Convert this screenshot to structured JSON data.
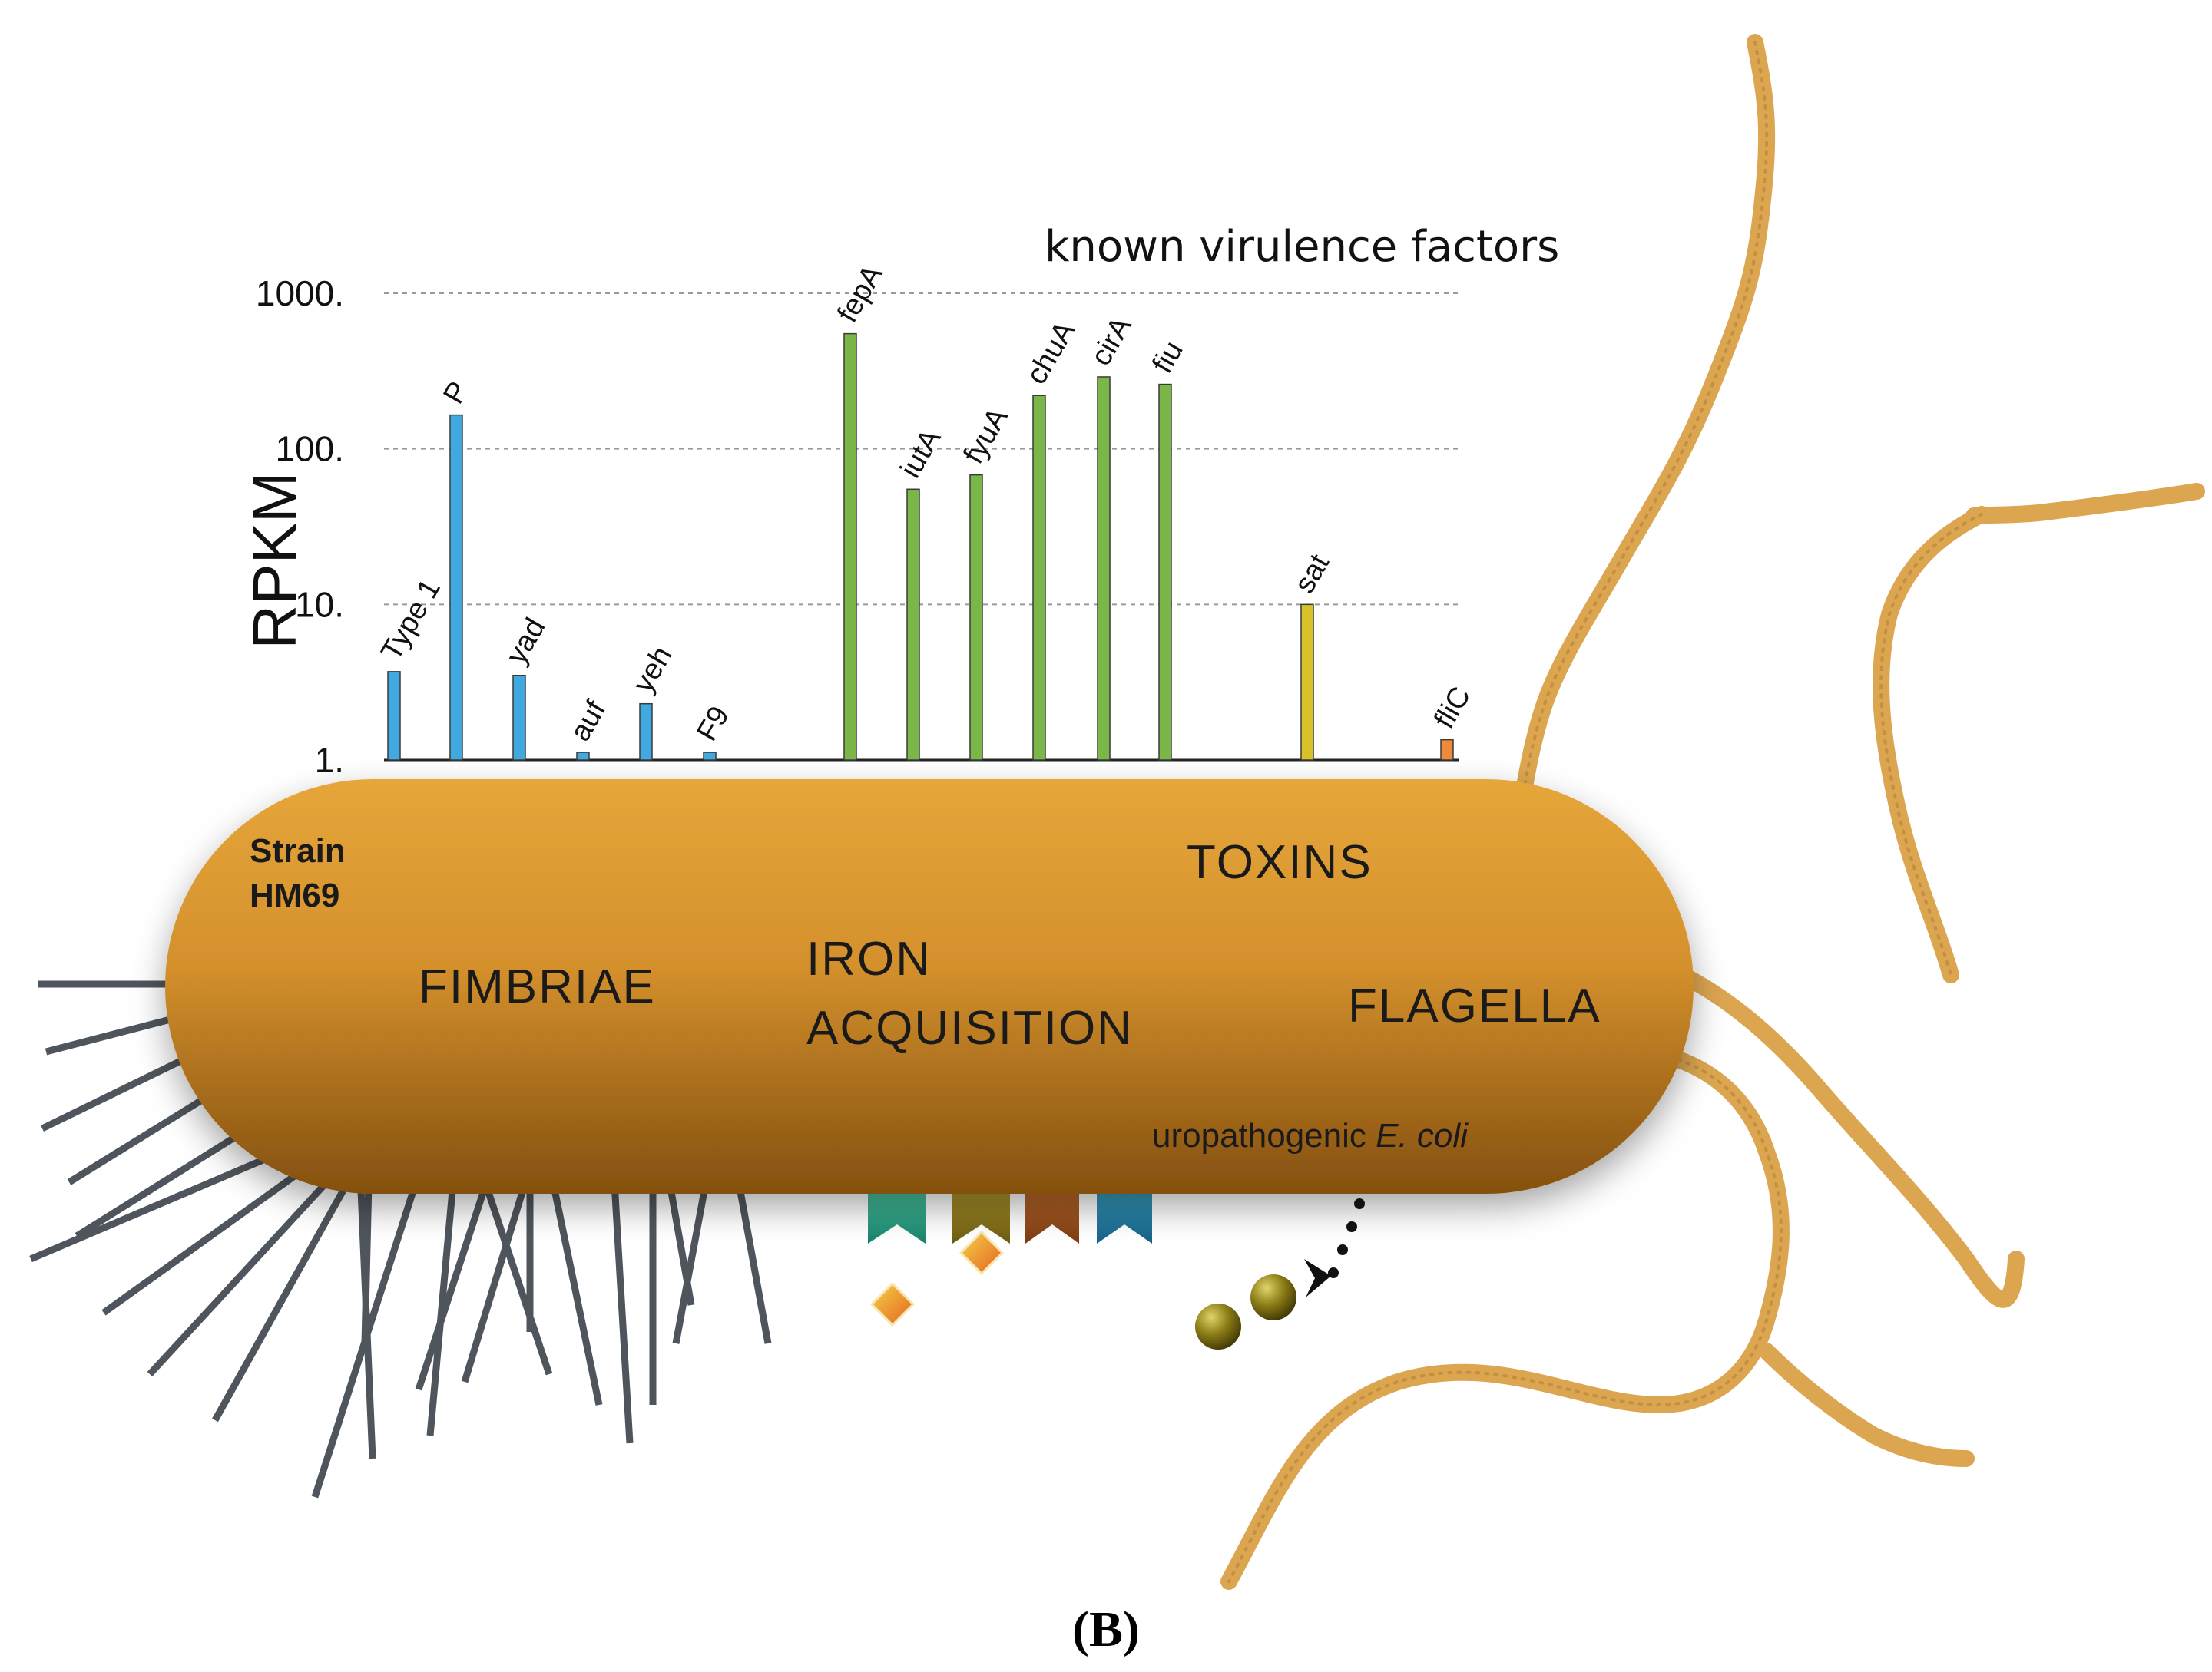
{
  "chart_data": {
    "type": "bar",
    "title": "known virulence factors",
    "ylabel": "RPKM",
    "xlabel": "",
    "yscale": "log",
    "ylim": [
      1,
      1000
    ],
    "yticks": [
      "1.",
      "10.",
      "100.",
      "1000."
    ],
    "grid": true,
    "categories": [
      "Type 1",
      "P",
      "yad",
      "auf",
      "yeh",
      "F9",
      "fepA",
      "iutA",
      "fyuA",
      "chuA",
      "cirA",
      "fiu",
      "sat",
      "fliC"
    ],
    "groups": [
      {
        "name": "FIMBRIAE",
        "color": "#3fa9e0",
        "members": [
          "Type 1",
          "P",
          "yad",
          "auf",
          "yeh",
          "F9"
        ]
      },
      {
        "name": "IRON ACQUISITION",
        "color": "#7ab648",
        "members": [
          "fepA",
          "iutA",
          "fyuA",
          "chuA",
          "cirA",
          "fiu"
        ]
      },
      {
        "name": "TOXINS",
        "color": "#d9c12a",
        "members": [
          "sat"
        ]
      },
      {
        "name": "FLAGELLA",
        "color": "#ee8a3a",
        "members": [
          "fliC"
        ]
      }
    ],
    "series": [
      {
        "name": "RPKM",
        "values": [
          3.7,
          165,
          3.5,
          1.12,
          2.3,
          1.12,
          550,
          55,
          68,
          220,
          290,
          260,
          10,
          1.35
        ]
      }
    ]
  },
  "labels": {
    "strain": [
      "Strain",
      "HM69"
    ],
    "fimbriae": "FIMBRIAE",
    "iron": [
      "IRON",
      "ACQUISITION"
    ],
    "toxins": "TOXINS",
    "flagella": "FLAGELLA",
    "upec_prefix": "uropathogenic ",
    "upec_species": "E. coli",
    "panel": "(B)"
  },
  "colors": {
    "cell_top": "#e3a236",
    "cell_bottom": "#86500f",
    "flagellum": "#dca650",
    "pilus": "#4f555c"
  }
}
